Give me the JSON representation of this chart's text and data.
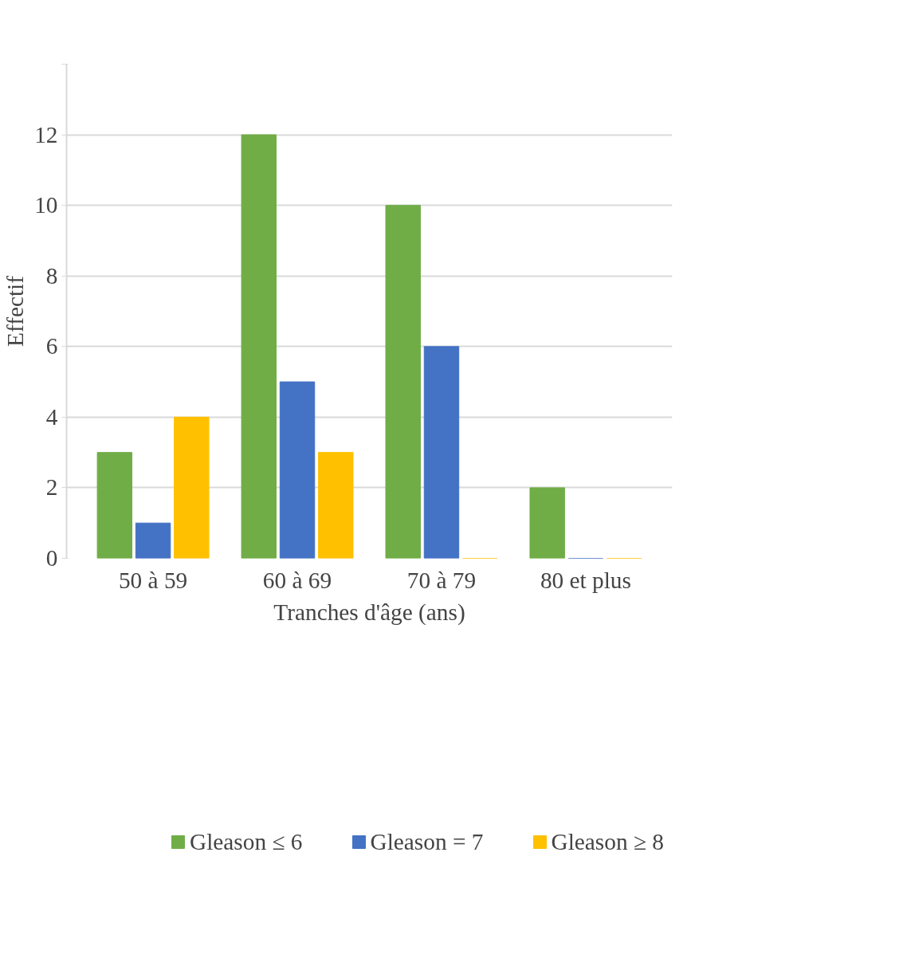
{
  "chart_data": {
    "type": "bar",
    "xlabel": "Tranches d'âge (ans)",
    "ylabel": "Effectif",
    "categories": [
      "50 à 59",
      "60 à 69",
      "70 à 79",
      "80 et plus"
    ],
    "series": [
      {
        "name": "Gleason ≤ 6",
        "color": "#70ad47",
        "values": [
          3,
          12,
          10,
          2
        ]
      },
      {
        "name": "Gleason = 7",
        "color": "#4472c4",
        "values": [
          1,
          5,
          6,
          0
        ]
      },
      {
        "name": "Gleason ≥ 8",
        "color": "#ffc000",
        "values": [
          4,
          3,
          0,
          0
        ]
      }
    ],
    "ylim": [
      0,
      14
    ],
    "yticks": [
      0,
      2,
      4,
      6,
      8,
      10,
      12,
      {
        "value": 14,
        "label": null
      }
    ],
    "grid": "y",
    "legend": "bottom"
  }
}
